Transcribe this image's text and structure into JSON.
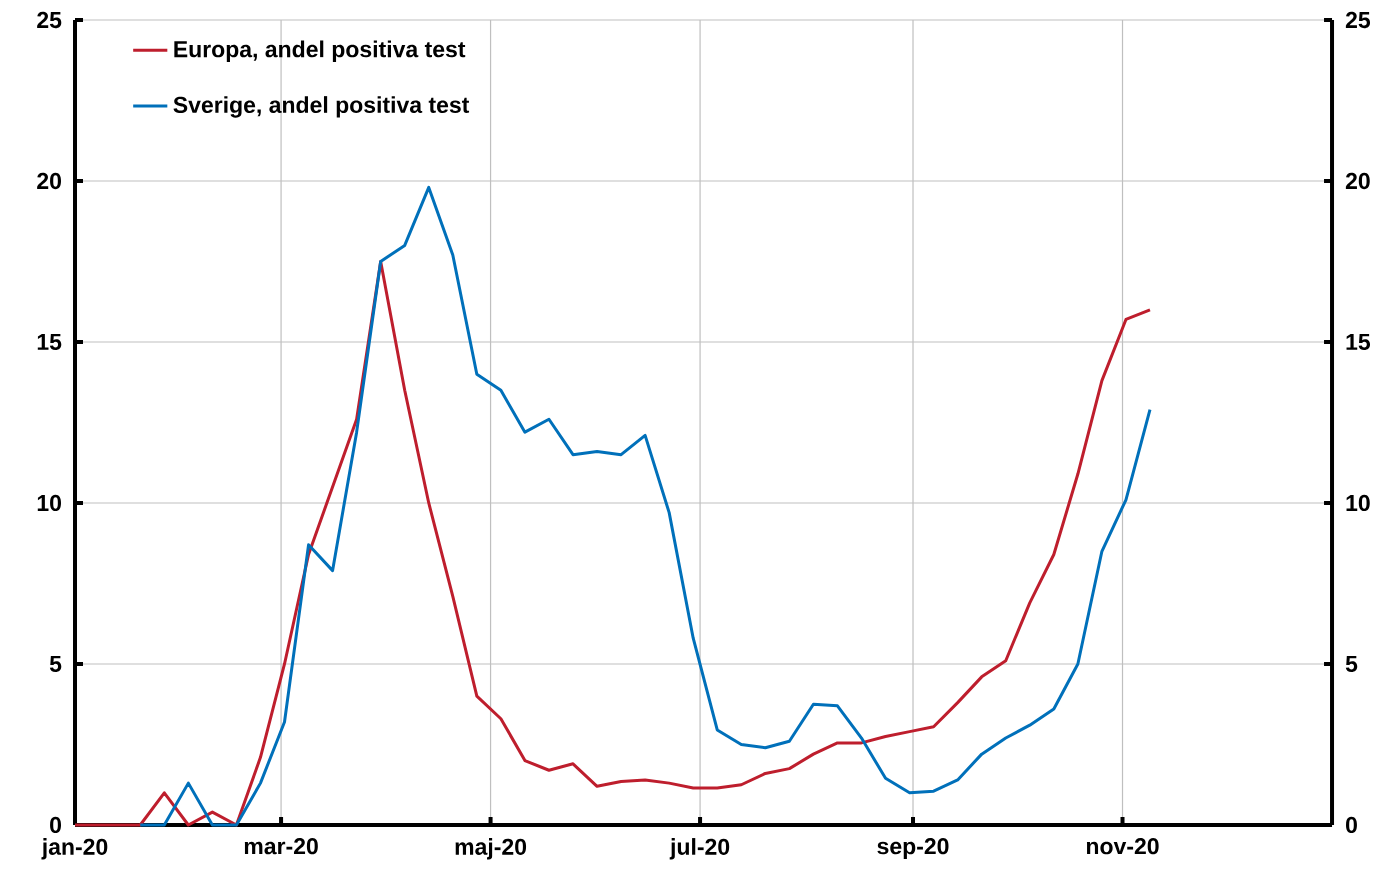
{
  "chart_data": {
    "type": "line",
    "x": [
      "2020-01-01",
      "2020-01-06",
      "2020-01-13",
      "2020-01-20",
      "2020-01-27",
      "2020-02-03",
      "2020-02-10",
      "2020-02-17",
      "2020-02-24",
      "2020-03-02",
      "2020-03-09",
      "2020-03-16",
      "2020-03-23",
      "2020-03-30",
      "2020-04-06",
      "2020-04-13",
      "2020-04-20",
      "2020-04-27",
      "2020-05-04",
      "2020-05-11",
      "2020-05-18",
      "2020-05-25",
      "2020-06-01",
      "2020-06-08",
      "2020-06-15",
      "2020-06-22",
      "2020-06-29",
      "2020-07-06",
      "2020-07-13",
      "2020-07-20",
      "2020-07-27",
      "2020-08-03",
      "2020-08-10",
      "2020-08-17",
      "2020-08-24",
      "2020-08-31",
      "2020-09-07",
      "2020-09-14",
      "2020-09-21",
      "2020-09-28",
      "2020-10-05",
      "2020-10-12",
      "2020-10-19",
      "2020-10-26",
      "2020-11-02",
      "2020-11-09"
    ],
    "series": [
      {
        "name": "Europa, andel positiva test",
        "color": "#be1e2d",
        "values": [
          0,
          0,
          0,
          0,
          1.0,
          0,
          0.4,
          0,
          2.1,
          5.0,
          8.4,
          10.5,
          12.6,
          17.5,
          13.5,
          10.0,
          7.1,
          4.0,
          3.3,
          2.0,
          1.7,
          1.9,
          1.2,
          1.35,
          1.4,
          1.3,
          1.15,
          1.15,
          1.25,
          1.6,
          1.75,
          2.2,
          2.55,
          2.55,
          2.75,
          2.9,
          3.05,
          3.8,
          4.6,
          5.1,
          6.9,
          8.4,
          10.9,
          13.8,
          15.7,
          16.0
        ]
      },
      {
        "name": "Sverige, andel positiva test",
        "color": "#0070ba",
        "values": [
          null,
          null,
          null,
          0,
          0,
          1.3,
          0,
          0,
          1.3,
          3.2,
          8.7,
          7.9,
          12.2,
          17.5,
          18.0,
          19.8,
          17.7,
          14.0,
          13.5,
          12.2,
          12.6,
          11.5,
          11.6,
          11.5,
          12.1,
          9.7,
          5.8,
          2.95,
          2.5,
          2.4,
          2.6,
          3.75,
          3.7,
          2.7,
          1.45,
          1.0,
          1.05,
          1.4,
          2.2,
          2.7,
          3.1,
          3.6,
          5.0,
          8.5,
          10.1,
          12.9
        ]
      }
    ],
    "xlim": [
      "2020-01-01",
      "2021-01-01"
    ],
    "xticks": [
      {
        "value": "2020-01-01",
        "label": "jan-20"
      },
      {
        "value": "2020-03-01",
        "label": "mar-20"
      },
      {
        "value": "2020-05-01",
        "label": "maj-20"
      },
      {
        "value": "2020-07-01",
        "label": "jul-20"
      },
      {
        "value": "2020-09-01",
        "label": "sep-20"
      },
      {
        "value": "2020-11-01",
        "label": "nov-20"
      }
    ],
    "ylim": [
      0,
      25
    ],
    "yticks": [
      0,
      5,
      10,
      15,
      20,
      25
    ],
    "y2lim": [
      0,
      25
    ],
    "y2ticks": [
      0,
      5,
      10,
      15,
      20,
      25
    ],
    "grid": true,
    "legend": "top left"
  }
}
